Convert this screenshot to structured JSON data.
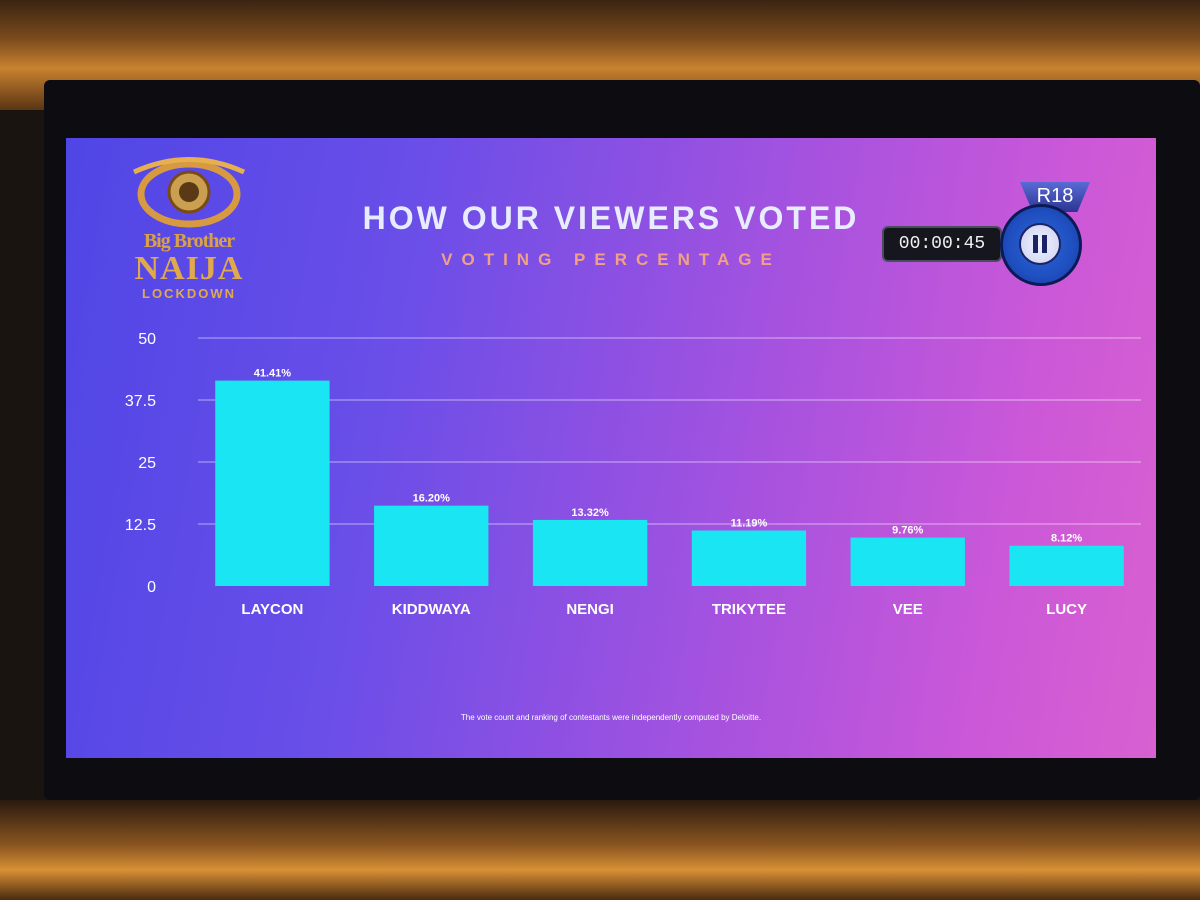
{
  "logo": {
    "line1": "Big Brother",
    "line2": "NAIJA",
    "line3": "LOCKDOWN"
  },
  "overlay": {
    "rating": "R18",
    "timer": "00:00:45"
  },
  "footnote": "The vote count and ranking of contestants were independently computed by Deloitte.",
  "colors": {
    "bar": "#19e6f2",
    "title": "#e8ecff",
    "subtitle": "#f2a184",
    "logo": "#e0aa4c"
  },
  "chart_data": {
    "type": "bar",
    "title": "HOW OUR VIEWERS VOTED",
    "subtitle": "VOTING PERCENTAGE",
    "xlabel": "",
    "ylabel": "",
    "categories": [
      "LAYCON",
      "KIDDWAYA",
      "NENGI",
      "TRIKYTEE",
      "VEE",
      "LUCY"
    ],
    "values": [
      41.41,
      16.2,
      13.32,
      11.19,
      9.76,
      8.12
    ],
    "value_labels": [
      "41.41%",
      "16.20%",
      "13.32%",
      "11.19%",
      "9.76%",
      "8.12%"
    ],
    "ylim": [
      0,
      50
    ],
    "yticks": [
      0,
      12.5,
      25,
      37.5,
      50
    ],
    "ytick_labels": [
      "0",
      "12.5",
      "25",
      "37.5",
      "50"
    ],
    "grid": true,
    "legend": "none"
  }
}
